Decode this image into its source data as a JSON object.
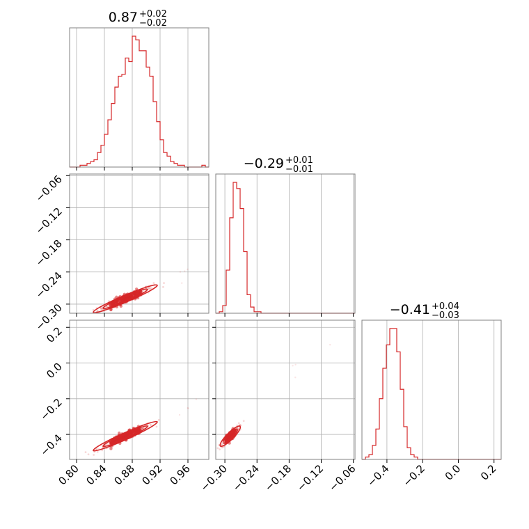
{
  "colors": {
    "series": "#d62728",
    "grid": "#b0b0b0",
    "frame": "#808080"
  },
  "chart_data": {
    "type": "corner",
    "grid": true,
    "parameters": [
      {
        "title_value": "0.87",
        "title_plus": "+0.02",
        "title_minus": "−0.02",
        "range": [
          0.79,
          0.99
        ],
        "ticks": [
          0.8,
          0.84,
          0.88,
          0.92,
          0.96
        ],
        "tick_labels": [
          "0.80",
          "0.84",
          "0.88",
          "0.92",
          "0.96"
        ]
      },
      {
        "title_value": "−0.29",
        "title_plus": "+0.01",
        "title_minus": "−0.01",
        "range": [
          -0.317,
          -0.057
        ],
        "ticks": [
          -0.3,
          -0.24,
          -0.18,
          -0.12,
          -0.06
        ],
        "tick_labels": [
          "−0.30",
          "−0.24",
          "−0.18",
          "−0.12",
          "−0.06"
        ]
      },
      {
        "title_value": "−0.41",
        "title_plus": "+0.04",
        "title_minus": "−0.03",
        "range": [
          -0.54,
          0.24
        ],
        "ticks": [
          -0.4,
          -0.2,
          0.0,
          0.2
        ],
        "tick_labels": [
          "−0.4",
          "−0.2",
          "0.0",
          "0.2"
        ]
      }
    ],
    "hist1d": [
      {
        "param": 0,
        "bin_edges_range": [
          0.79,
          0.99
        ],
        "counts": [
          0,
          0,
          0,
          1,
          1,
          2,
          3,
          4,
          8,
          12,
          18,
          26,
          35,
          44,
          50,
          51,
          60,
          58,
          72,
          70,
          64,
          64,
          55,
          50,
          36,
          25,
          15,
          8,
          6,
          3,
          2,
          1,
          1,
          0,
          0,
          0,
          0,
          0,
          1,
          0
        ]
      },
      {
        "param": 1,
        "bin_edges_range": [
          -0.317,
          -0.057
        ],
        "counts": [
          0,
          1,
          5,
          28,
          62,
          85,
          81,
          68,
          40,
          12,
          4,
          1,
          1,
          0,
          0,
          0,
          0,
          0,
          0,
          0,
          0,
          0,
          0,
          0,
          0,
          0,
          0,
          0,
          0,
          0,
          0,
          0,
          0,
          0,
          0,
          0,
          0,
          0,
          0,
          0
        ]
      },
      {
        "param": 2,
        "bin_edges_range": [
          -0.54,
          0.24
        ],
        "counts": [
          0,
          1,
          2,
          6,
          13,
          26,
          39,
          49,
          56,
          56,
          46,
          30,
          14,
          5,
          2,
          1,
          0,
          0,
          0,
          0,
          0,
          0,
          0,
          0,
          0,
          0,
          0,
          0,
          0,
          0,
          0,
          0,
          0,
          0,
          0,
          0,
          0,
          0,
          0,
          0
        ]
      }
    ],
    "hist2d": [
      {
        "x_param": 0,
        "y_param": 1,
        "center": [
          0.87,
          -0.29
        ],
        "x_spread": 0.02,
        "slope": 0.55,
        "width": 0.004,
        "x_extent": [
          0.81,
          0.93
        ]
      },
      {
        "x_param": 0,
        "y_param": 2,
        "center": [
          0.87,
          -0.41
        ],
        "x_spread": 0.02,
        "slope": 1.75,
        "width": 0.01,
        "x_extent": [
          0.8,
          0.93
        ]
      },
      {
        "x_param": 1,
        "y_param": 2,
        "center": [
          -0.29,
          -0.41
        ],
        "x_spread": 0.008,
        "slope": 3.0,
        "width": 0.012,
        "x_extent": [
          -0.315,
          -0.24
        ]
      }
    ]
  }
}
